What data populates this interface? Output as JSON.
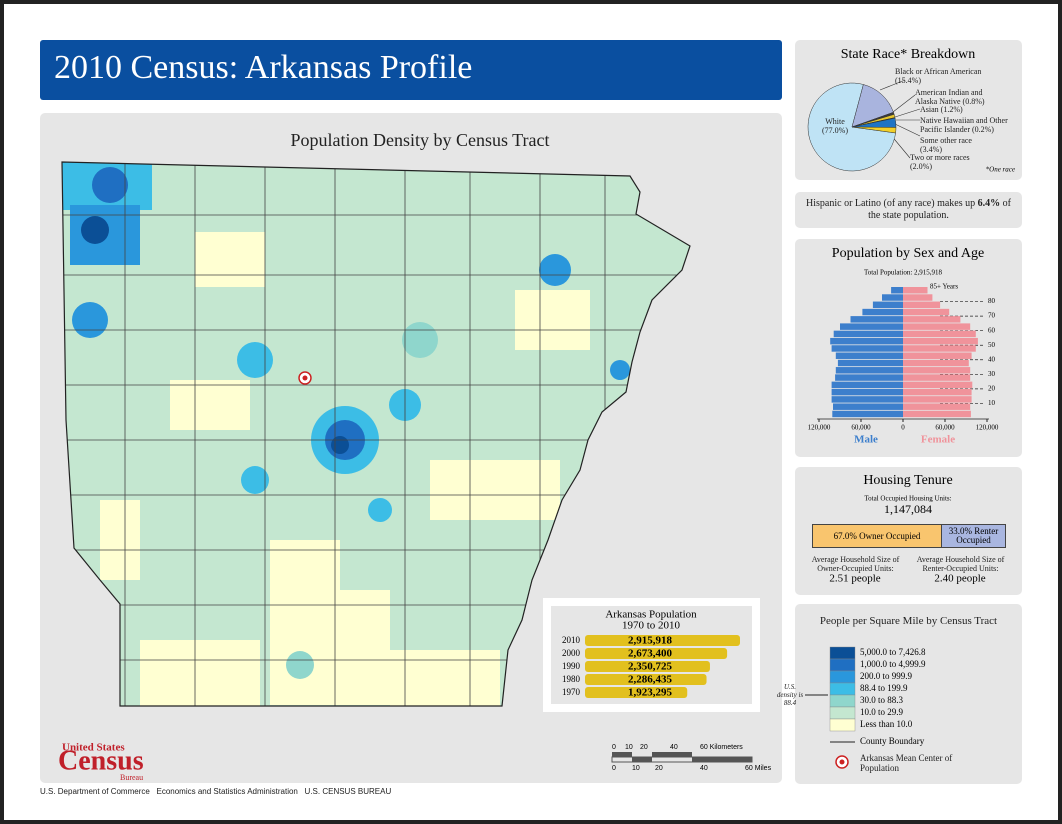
{
  "header": {
    "title": "2010 Census: Arkansas Profile"
  },
  "map": {
    "title": "Population Density by Census Tract"
  },
  "race": {
    "type": "pie",
    "title": "State Race* Breakdown",
    "categories": [
      "White (77.0%)",
      "Black or African American (15.4%)",
      "American Indian and Alaska Native (0.8%)",
      "Asian (1.2%)",
      "Native Hawaiian and Other Pacific Islander (0.2%)",
      "Some other race (3.4%)",
      "Two or more races (2.0%)"
    ],
    "values": [
      77.0,
      15.4,
      0.8,
      1.2,
      0.2,
      3.4,
      2.0
    ],
    "colors": [
      "#bfe3f5",
      "#a9b4de",
      "#3a3a3a",
      "#e6c62e",
      "#3f8f3f",
      "#1f74c4",
      "#f2d02a"
    ],
    "note": "*One race"
  },
  "hispanic": {
    "text_before": "Hispanic or Latino (of any race) makes up",
    "percent": "6.4%",
    "text_after": "of the state population."
  },
  "sex_age": {
    "type": "pyramid",
    "title": "Population by Sex and Age",
    "total": "Total Population: 2,915,918",
    "top_label": "85+ Years",
    "male_name": "Male",
    "female_name": "Female",
    "male_color": "#3d7fcc",
    "female_color": "#f0939b",
    "male": [
      101000,
      100000,
      102000,
      102000,
      102000,
      97000,
      96000,
      93000,
      96000,
      102000,
      104000,
      99000,
      90000,
      75000,
      58000,
      43000,
      30000,
      17000
    ],
    "female": [
      97000,
      96000,
      98000,
      98000,
      99000,
      96000,
      96000,
      94000,
      98000,
      104000,
      107000,
      104000,
      96000,
      82000,
      66000,
      53000,
      42000,
      35000
    ],
    "ylim": [
      0,
      90
    ],
    "yticks": [
      10,
      20,
      30,
      40,
      50,
      60,
      70,
      80
    ],
    "male_xticks": [
      {
        "value": 120000,
        "label": "120,000"
      },
      {
        "value": 60000,
        "label": "60,000"
      },
      0
    ],
    "female_xticks": [
      {
        "value": 60000,
        "label": "60,000"
      },
      {
        "value": 120000,
        "label": "120,000"
      }
    ]
  },
  "housing": {
    "title": "Housing Tenure",
    "total_label": "Total Occupied Housing Units:",
    "total": "1,147,084",
    "values": [
      67.0,
      33.0
    ],
    "value_labels": [
      "67.0% Owner Occupied",
      "33.0% Renter Occupied"
    ],
    "colors": [
      "#f9c56e",
      "#a9b6e0"
    ],
    "owner_size_label": "Average Household Size of Owner-Occupied Units:",
    "owner_size": "2.51 people",
    "renter_size_label": "Average Household Size of Renter-Occupied Units:",
    "renter_size": "2.40 people"
  },
  "population_history": {
    "type": "bar",
    "title": "Arkansas Population",
    "subtitle": "1970 to 2010",
    "categories": [
      "2010",
      "2000",
      "1990",
      "1980",
      "1970"
    ],
    "values": [
      2915918,
      2673400,
      2350725,
      2286435,
      1923295
    ],
    "value_labels": [
      "2,915,918",
      "2,673,400",
      "2,350,725",
      "2,286,435",
      "1,923,295"
    ],
    "color": "#e2c01e"
  },
  "legend": {
    "title": "People per Square Mile by Census Tract",
    "classes": [
      {
        "label": "5,000.0 to 7,426.8",
        "color": "#0b4f96"
      },
      {
        "label": "1,000.0 to 4,999.9",
        "color": "#1f6fc2"
      },
      {
        "label": "200.0 to 999.9",
        "color": "#2a97dc"
      },
      {
        "label": "88.4 to 199.9",
        "color": "#3cbde6"
      },
      {
        "label": "30.0 to 88.3",
        "color": "#8fd6cc"
      },
      {
        "label": "10.0 to 29.9",
        "color": "#c4e7d0"
      },
      {
        "label": "Less than 10.0",
        "color": "#ffffd2"
      }
    ],
    "us_density_label": "U.S. density is 88.4",
    "county_boundary": "County Boundary",
    "mean_center": "Arkansas Mean Center of Population"
  },
  "scale": {
    "km_ticks": [
      "0",
      "10",
      "20",
      "40",
      "60 Kilometers"
    ],
    "mile_ticks": [
      "0",
      "10",
      "20",
      "40",
      "60 Miles"
    ]
  },
  "footer": {
    "logo_top": "United States",
    "logo_main": "Census",
    "logo_bottom": "Bureau",
    "agencies": "U.S. Department of Commerce   Economics and Statistics Administration   U.S. CENSUS BUREAU"
  }
}
